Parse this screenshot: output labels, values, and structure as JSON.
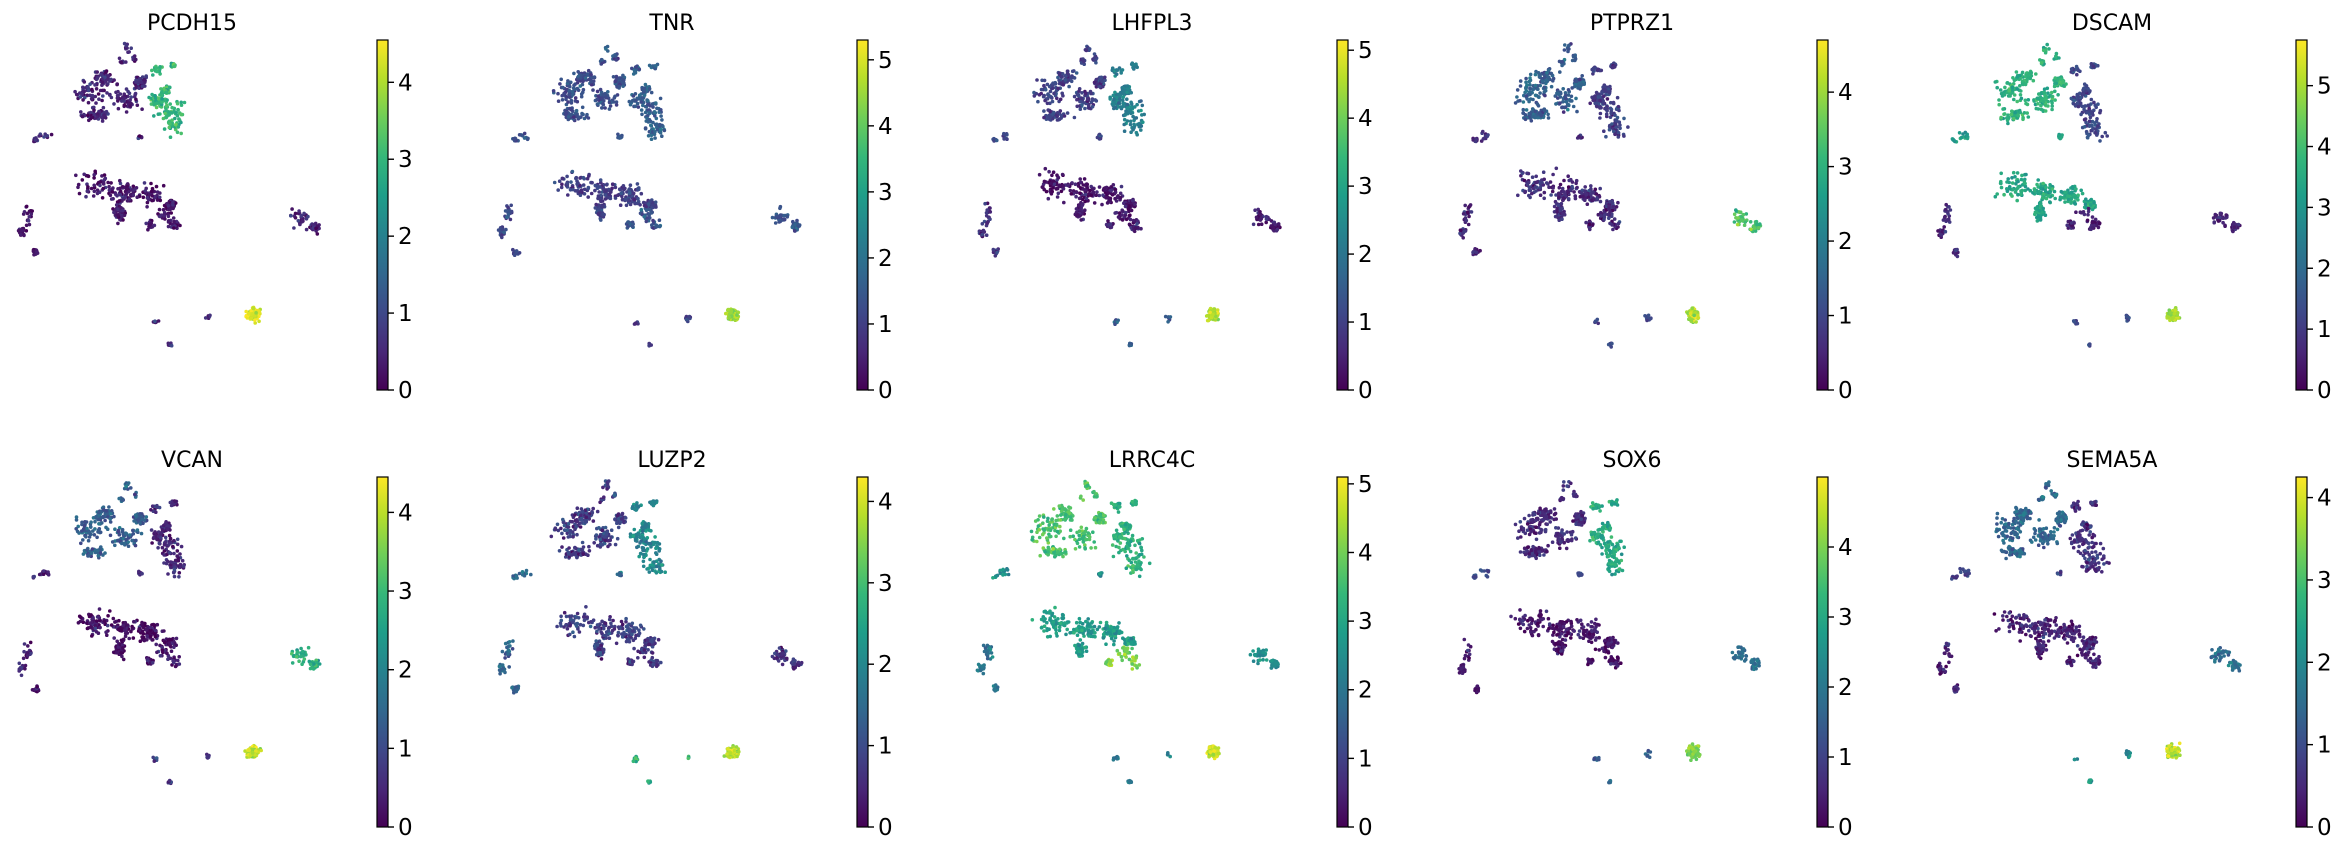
{
  "chart_data": {
    "type": "scatter",
    "description_kind": "umap-feature-grid",
    "colormap": [
      "#440154",
      "#482878",
      "#3e4989",
      "#31688e",
      "#26828e",
      "#1f9e89",
      "#35b779",
      "#6ece58",
      "#b5de2b",
      "#fde725"
    ],
    "panels": [
      {
        "gene": "PCDH15",
        "vmax": 4.55,
        "ticks": [
          0,
          1,
          2,
          3,
          4
        ],
        "expression": {
          "c1": 0.5,
          "c2": 3.0,
          "c3": 0.3,
          "c4": 0.3,
          "c5": 0.3,
          "c6": 4.3,
          "c7": 0.4,
          "c8": 0.5,
          "c9": 0.5
        }
      },
      {
        "gene": "TNR",
        "vmax": 5.3,
        "ticks": [
          0,
          1,
          2,
          3,
          4,
          5
        ],
        "expression": {
          "c1": 1.3,
          "c2": 1.6,
          "c3": 1.0,
          "c4": 1.4,
          "c5": 1.2,
          "c6": 4.5,
          "c7": 1.4,
          "c8": 1.5,
          "c9": 1.0
        }
      },
      {
        "gene": "LHFPL3",
        "vmax": 5.15,
        "ticks": [
          0,
          1,
          2,
          3,
          4,
          5
        ],
        "expression": {
          "c1": 1.0,
          "c2": 2.2,
          "c3": 0.3,
          "c4": 0.5,
          "c5": 0.7,
          "c6": 4.6,
          "c7": 0.4,
          "c8": 1.2,
          "c9": 1.5
        }
      },
      {
        "gene": "PTPRZ1",
        "vmax": 4.7,
        "ticks": [
          0,
          1,
          2,
          3,
          4
        ],
        "expression": {
          "c1": 1.4,
          "c2": 0.9,
          "c3": 0.6,
          "c4": 0.5,
          "c5": 0.5,
          "c6": 4.2,
          "c7": 3.3,
          "c8": 0.6,
          "c9": 1.2
        }
      },
      {
        "gene": "DSCAM",
        "vmax": 5.75,
        "ticks": [
          0,
          1,
          2,
          3,
          4,
          5
        ],
        "expression": {
          "c1": 3.7,
          "c2": 1.2,
          "c3": 3.4,
          "c4": 0.6,
          "c5": 0.7,
          "c6": 5.0,
          "c7": 0.6,
          "c8": 3.3,
          "c9": 1.2
        }
      },
      {
        "gene": "VCAN",
        "vmax": 4.45,
        "ticks": [
          0,
          1,
          2,
          3,
          4
        ],
        "expression": {
          "c1": 1.3,
          "c2": 0.5,
          "c3": 0.2,
          "c4": 0.3,
          "c5": 0.3,
          "c6": 4.0,
          "c7": 2.8,
          "c8": 0.4,
          "c9": 0.8
        }
      },
      {
        "gene": "LUZP2",
        "vmax": 4.3,
        "ticks": [
          0,
          1,
          2,
          3,
          4
        ],
        "expression": {
          "c1": 0.8,
          "c2": 2.0,
          "c3": 0.8,
          "c4": 0.7,
          "c5": 1.4,
          "c6": 3.8,
          "c7": 0.6,
          "c8": 1.5,
          "c9": 2.8
        }
      },
      {
        "gene": "LRRC4C",
        "vmax": 5.1,
        "ticks": [
          0,
          1,
          2,
          3,
          4,
          5
        ],
        "expression": {
          "c1": 3.6,
          "c2": 3.2,
          "c3": 2.8,
          "c4": 4.1,
          "c5": 2.0,
          "c6": 4.7,
          "c7": 2.5,
          "c8": 2.5,
          "c9": 2.2
        }
      },
      {
        "gene": "SOX6",
        "vmax": 5.0,
        "ticks": [
          0,
          1,
          2,
          3,
          4
        ],
        "expression": {
          "c1": 0.6,
          "c2": 3.0,
          "c3": 0.3,
          "c4": 0.3,
          "c5": 0.3,
          "c6": 4.0,
          "c7": 1.8,
          "c8": 1.2,
          "c9": 1.5
        }
      },
      {
        "gene": "SEMA5A",
        "vmax": 4.25,
        "ticks": [
          0,
          1,
          2,
          3,
          4
        ],
        "expression": {
          "c1": 1.4,
          "c2": 0.6,
          "c3": 0.4,
          "c4": 0.4,
          "c5": 0.4,
          "c6": 3.8,
          "c7": 1.5,
          "c8": 0.8,
          "c9": 2.0
        }
      }
    ]
  }
}
